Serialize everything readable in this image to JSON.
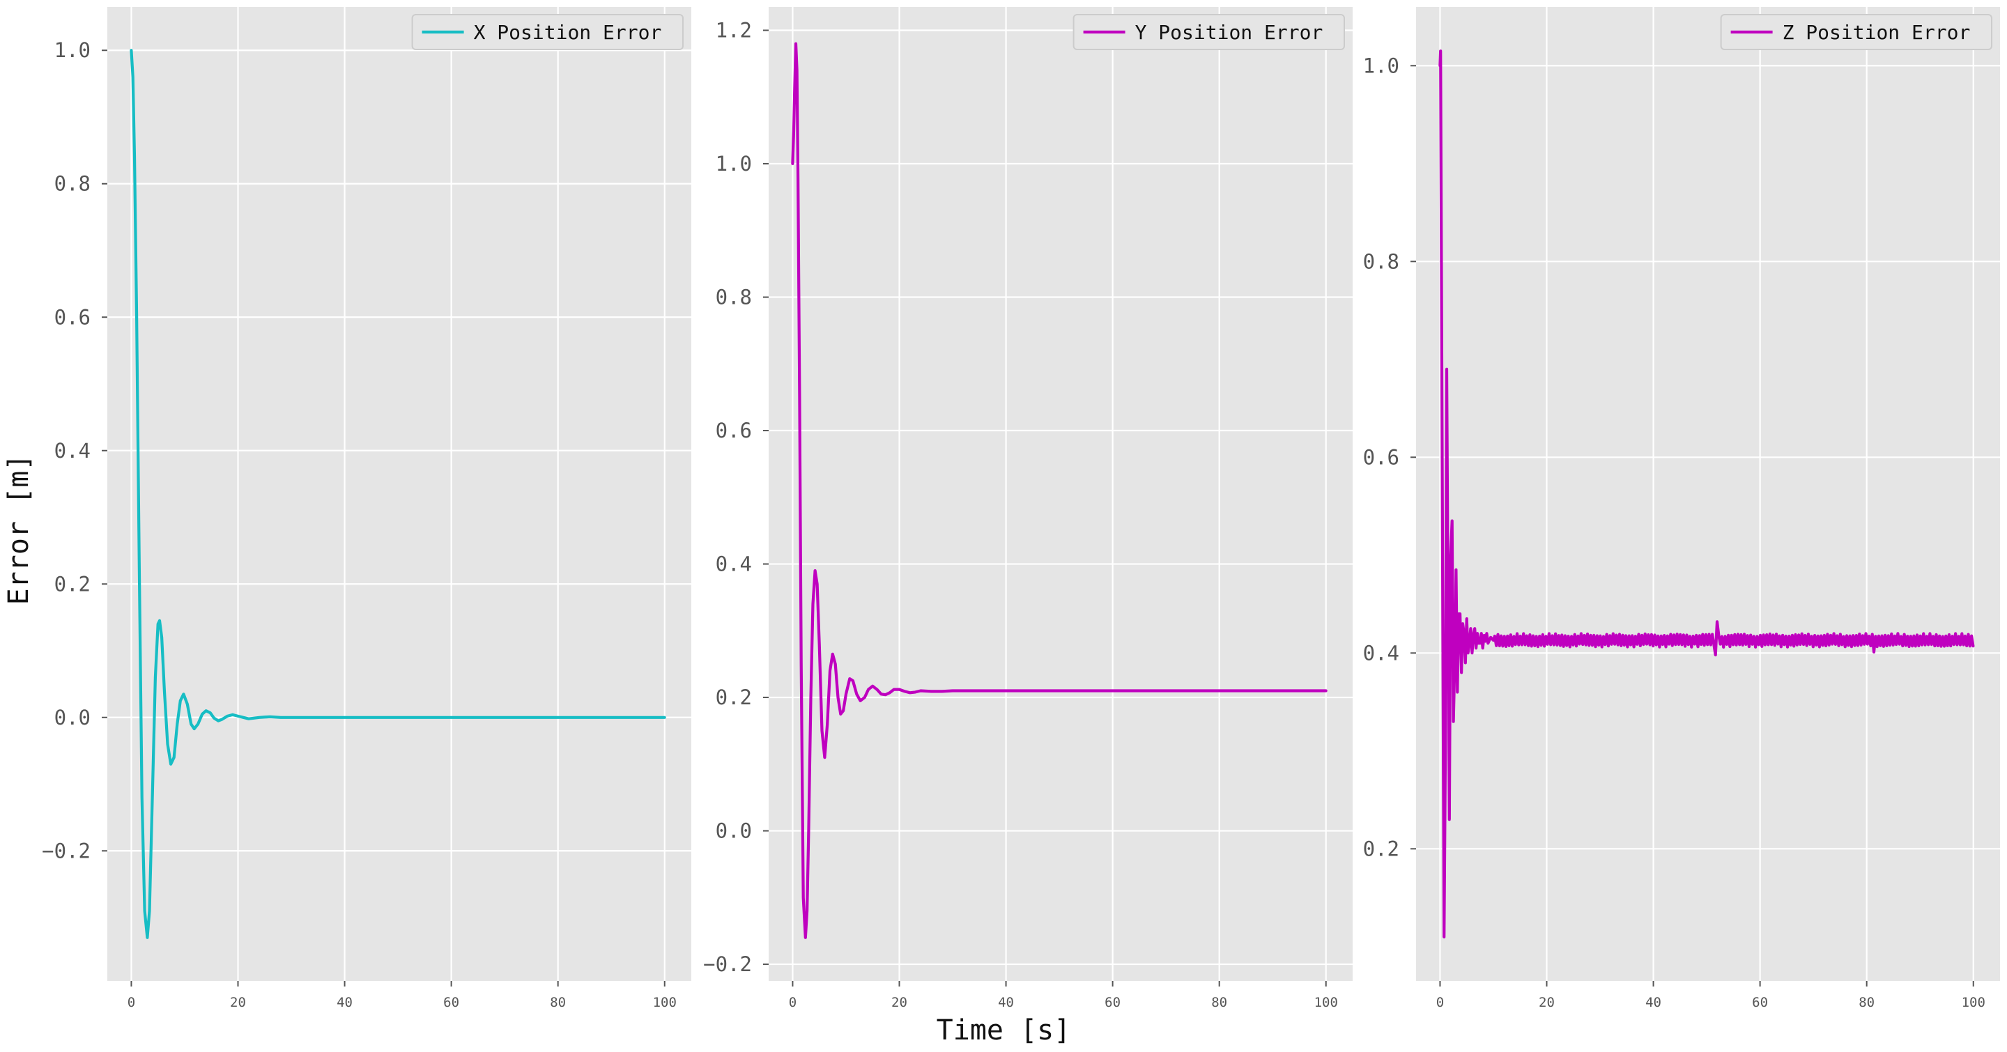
{
  "figure": {
    "ylabel": "Error [m]",
    "xlabel": "Time [s]"
  },
  "chart_data": [
    {
      "type": "line",
      "legend": "top-right",
      "grid": true,
      "xlim": [
        -4.5,
        105
      ],
      "ylim": [
        -0.395,
        1.065
      ],
      "xticks": [
        0,
        20,
        40,
        60,
        80,
        100
      ],
      "xtick_labels": [
        "0",
        "20",
        "40",
        "60",
        "80",
        "100"
      ],
      "yticks": [
        -0.2,
        0.0,
        0.2,
        0.4,
        0.6,
        0.8,
        1.0
      ],
      "ytick_labels": [
        "−0.2",
        "0.0",
        "0.2",
        "0.4",
        "0.6",
        "0.8",
        "1.0"
      ],
      "series": [
        {
          "name": "X Position Error",
          "color": "#17bdc4",
          "x": [
            0,
            0.3,
            0.6,
            1.0,
            1.5,
            2.0,
            2.5,
            3.0,
            3.4,
            4.0,
            4.5,
            5.0,
            5.3,
            5.7,
            6.2,
            6.8,
            7.4,
            8.0,
            8.6,
            9.2,
            9.8,
            10.5,
            11.2,
            11.8,
            12.5,
            13.3,
            14.0,
            14.8,
            15.5,
            16.3,
            17.0,
            18.0,
            19.0,
            20.0,
            21.0,
            22.0,
            24.0,
            26.0,
            28.0,
            30.0,
            35.0,
            40.0,
            50.0,
            60.0,
            70.0,
            80.0,
            90.0,
            100.0
          ],
          "y": [
            1.0,
            0.96,
            0.84,
            0.6,
            0.22,
            -0.12,
            -0.29,
            -0.33,
            -0.29,
            -0.1,
            0.06,
            0.14,
            0.145,
            0.12,
            0.04,
            -0.04,
            -0.07,
            -0.06,
            -0.01,
            0.025,
            0.035,
            0.02,
            -0.01,
            -0.017,
            -0.01,
            0.005,
            0.01,
            0.007,
            -0.001,
            -0.005,
            -0.003,
            0.002,
            0.004,
            0.002,
            0.0,
            -0.002,
            0.0,
            0.001,
            0.0,
            0.0,
            0.0,
            0.0,
            0.0,
            0.0,
            0.0,
            0.0,
            0.0,
            0.0
          ]
        }
      ]
    },
    {
      "type": "line",
      "legend": "top-right",
      "grid": true,
      "xlim": [
        -4.5,
        105
      ],
      "ylim": [
        -0.225,
        1.235
      ],
      "xticks": [
        0,
        20,
        40,
        60,
        80,
        100
      ],
      "xtick_labels": [
        "0",
        "20",
        "40",
        "60",
        "80",
        "100"
      ],
      "yticks": [
        -0.2,
        0.0,
        0.2,
        0.4,
        0.6,
        0.8,
        1.0,
        1.2
      ],
      "ytick_labels": [
        "−0.2",
        "0.0",
        "0.2",
        "0.4",
        "0.6",
        "0.8",
        "1.0",
        "1.2"
      ],
      "series": [
        {
          "name": "Y Position Error",
          "color": "#bf00bf",
          "x": [
            0,
            0.2,
            0.4,
            0.6,
            0.8,
            1.0,
            1.3,
            1.6,
            2.0,
            2.4,
            2.7,
            3.0,
            3.4,
            3.8,
            4.2,
            4.6,
            5.0,
            5.5,
            6.0,
            6.5,
            7.0,
            7.5,
            8.0,
            8.5,
            9.0,
            9.5,
            10.0,
            10.7,
            11.3,
            12.0,
            12.7,
            13.5,
            14.2,
            15.0,
            15.8,
            16.6,
            17.4,
            18.2,
            19.0,
            20.0,
            21.0,
            22.0,
            23.0,
            24.0,
            26.0,
            28.0,
            30.0,
            35.0,
            40.0,
            50.0,
            60.0,
            70.0,
            80.0,
            90.0,
            100.0
          ],
          "y": [
            1.0,
            1.05,
            1.12,
            1.18,
            1.14,
            0.98,
            0.65,
            0.25,
            -0.1,
            -0.16,
            -0.12,
            0.0,
            0.2,
            0.34,
            0.39,
            0.37,
            0.28,
            0.15,
            0.11,
            0.16,
            0.24,
            0.265,
            0.25,
            0.2,
            0.175,
            0.18,
            0.205,
            0.228,
            0.225,
            0.205,
            0.195,
            0.2,
            0.212,
            0.217,
            0.212,
            0.205,
            0.204,
            0.207,
            0.212,
            0.212,
            0.209,
            0.207,
            0.208,
            0.21,
            0.209,
            0.209,
            0.21,
            0.21,
            0.21,
            0.21,
            0.21,
            0.21,
            0.21,
            0.21,
            0.21
          ]
        }
      ]
    },
    {
      "type": "line",
      "legend": "top-right",
      "grid": true,
      "xlim": [
        -4.5,
        105
      ],
      "ylim": [
        0.065,
        1.06
      ],
      "xticks": [
        0,
        20,
        40,
        60,
        80,
        100
      ],
      "xtick_labels": [
        "0",
        "20",
        "40",
        "60",
        "80",
        "100"
      ],
      "yticks": [
        0.2,
        0.4,
        0.6,
        0.8,
        1.0
      ],
      "ytick_labels": [
        "0.2",
        "0.4",
        "0.6",
        "0.8",
        "1.0"
      ],
      "series": [
        {
          "name": "Z Position Error",
          "color": "#bf00bf",
          "x": [
            0,
            0.1,
            0.25,
            0.5,
            0.75,
            1.0,
            1.25,
            1.5,
            1.75,
            2.0,
            2.25,
            2.5,
            2.75,
            3.0,
            3.25,
            3.5,
            3.75,
            4.0,
            4.25,
            4.5,
            4.75,
            5.0,
            5.25,
            5.5,
            5.75,
            6.0,
            6.25,
            6.5,
            6.75,
            7.0,
            7.25,
            7.5,
            7.75,
            8.0,
            8.25,
            8.5,
            8.75,
            9.0,
            9.5,
            10.0
          ],
          "y": [
            1.0,
            1.015,
            0.8,
            0.45,
            0.11,
            0.3,
            0.69,
            0.45,
            0.23,
            0.5,
            0.535,
            0.33,
            0.39,
            0.485,
            0.36,
            0.44,
            0.44,
            0.38,
            0.43,
            0.42,
            0.39,
            0.435,
            0.4,
            0.41,
            0.425,
            0.4,
            0.418,
            0.425,
            0.405,
            0.42,
            0.41,
            0.41,
            0.42,
            0.405,
            0.418,
            0.412,
            0.42,
            0.41,
            0.416,
            0.413
          ],
          "steady_value": 0.413,
          "ripple_amplitude": 0.007,
          "spikes": [
            {
              "x": 51.6,
              "y": 0.398
            },
            {
              "x": 51.9,
              "y": 0.432
            },
            {
              "x": 81.5,
              "y": 0.423
            },
            {
              "x": 81.2,
              "y": 0.401
            },
            {
              "x": 99.0,
              "y": 0.419
            }
          ]
        }
      ]
    }
  ]
}
